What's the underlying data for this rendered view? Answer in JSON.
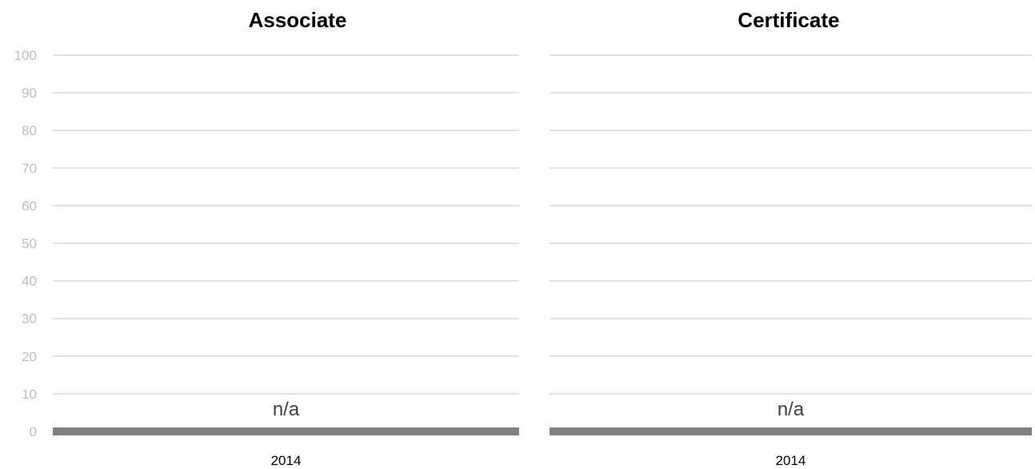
{
  "chart_data": [
    {
      "type": "bar",
      "title": "Associate",
      "categories": [
        "2014"
      ],
      "values": [
        0
      ],
      "data_labels": [
        "n/a"
      ],
      "ylim": [
        0,
        100
      ],
      "yticks": [
        "0",
        "10",
        "20",
        "30",
        "40",
        "50",
        "60",
        "70",
        "80",
        "90",
        "100"
      ],
      "grid": true,
      "axis_color": "#808080",
      "grid_color": "#d9d9d9"
    },
    {
      "type": "bar",
      "title": "Certificate",
      "categories": [
        "2014"
      ],
      "values": [
        0
      ],
      "data_labels": [
        "n/a"
      ],
      "ylim": [
        0,
        100
      ],
      "grid": true,
      "axis_color": "#808080",
      "grid_color": "#d9d9d9"
    }
  ]
}
